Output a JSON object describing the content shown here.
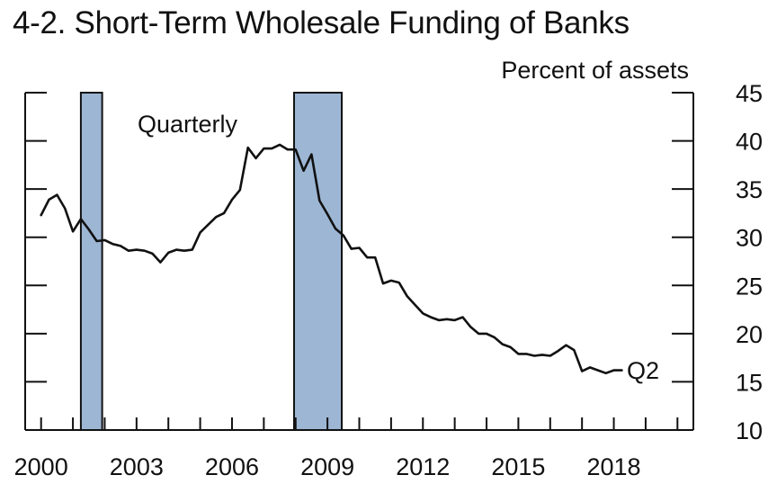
{
  "chart_data": {
    "type": "line",
    "title": "4-2. Short-Term Wholesale Funding of Banks",
    "ylabel": "Percent of assets",
    "xlabel": "",
    "frequency_label": "Quarterly",
    "end_label": "Q2",
    "ylim": [
      10,
      45
    ],
    "yticks": [
      10,
      15,
      20,
      25,
      30,
      35,
      40,
      45
    ],
    "xlim": [
      1999.5,
      2020.5
    ],
    "xticks": [
      2000,
      2001,
      2002,
      2003,
      2004,
      2005,
      2006,
      2007,
      2008,
      2009,
      2010,
      2011,
      2012,
      2013,
      2014,
      2015,
      2016,
      2017,
      2018,
      2019,
      2020
    ],
    "xtick_labels": [
      "2000",
      "2003",
      "2006",
      "2009",
      "2012",
      "2015",
      "2018"
    ],
    "xtick_label_years": [
      2000,
      2003,
      2006,
      2009,
      2012,
      2015,
      2018
    ],
    "recessions": [
      {
        "start": 2001.25,
        "end": 2001.92
      },
      {
        "start": 2007.95,
        "end": 2009.45
      }
    ],
    "colors": {
      "line": "#111111",
      "recession_fill": "#9db6d4",
      "recession_stroke": "#111111",
      "axis": "#111111"
    },
    "series": [
      {
        "name": "Short-term wholesale funding",
        "x": [
          2000.0,
          2000.25,
          2000.5,
          2000.75,
          2001.0,
          2001.25,
          2001.5,
          2001.75,
          2002.0,
          2002.25,
          2002.5,
          2002.75,
          2003.0,
          2003.25,
          2003.5,
          2003.75,
          2004.0,
          2004.25,
          2004.5,
          2004.75,
          2005.0,
          2005.25,
          2005.5,
          2005.75,
          2006.0,
          2006.25,
          2006.5,
          2006.75,
          2007.0,
          2007.25,
          2007.5,
          2007.75,
          2008.0,
          2008.25,
          2008.5,
          2008.75,
          2009.0,
          2009.25,
          2009.5,
          2009.75,
          2010.0,
          2010.25,
          2010.5,
          2010.75,
          2011.0,
          2011.25,
          2011.5,
          2011.75,
          2012.0,
          2012.25,
          2012.5,
          2012.75,
          2013.0,
          2013.25,
          2013.5,
          2013.75,
          2014.0,
          2014.25,
          2014.5,
          2014.75,
          2015.0,
          2015.25,
          2015.5,
          2015.75,
          2016.0,
          2016.25,
          2016.5,
          2016.75,
          2017.0,
          2017.25,
          2017.5,
          2017.75,
          2018.0,
          2018.25
        ],
        "values": [
          32.3,
          33.9,
          34.4,
          33.0,
          30.6,
          31.9,
          30.8,
          29.6,
          29.7,
          29.3,
          29.1,
          28.6,
          28.7,
          28.6,
          28.3,
          27.4,
          28.4,
          28.7,
          28.6,
          28.7,
          30.5,
          31.3,
          32.1,
          32.5,
          33.9,
          34.9,
          39.3,
          38.2,
          39.2,
          39.2,
          39.6,
          39.1,
          39.1,
          36.9,
          38.6,
          33.8,
          32.4,
          30.9,
          30.2,
          28.8,
          28.9,
          27.9,
          27.9,
          25.2,
          25.5,
          25.3,
          23.9,
          23.0,
          22.1,
          21.7,
          21.4,
          21.5,
          21.4,
          21.7,
          20.7,
          20.0,
          20.0,
          19.6,
          18.9,
          18.6,
          17.9,
          17.9,
          17.7,
          17.8,
          17.7,
          18.2,
          18.8,
          18.3,
          16.1,
          16.5,
          16.2,
          15.9,
          16.2,
          16.2
        ]
      }
    ]
  }
}
